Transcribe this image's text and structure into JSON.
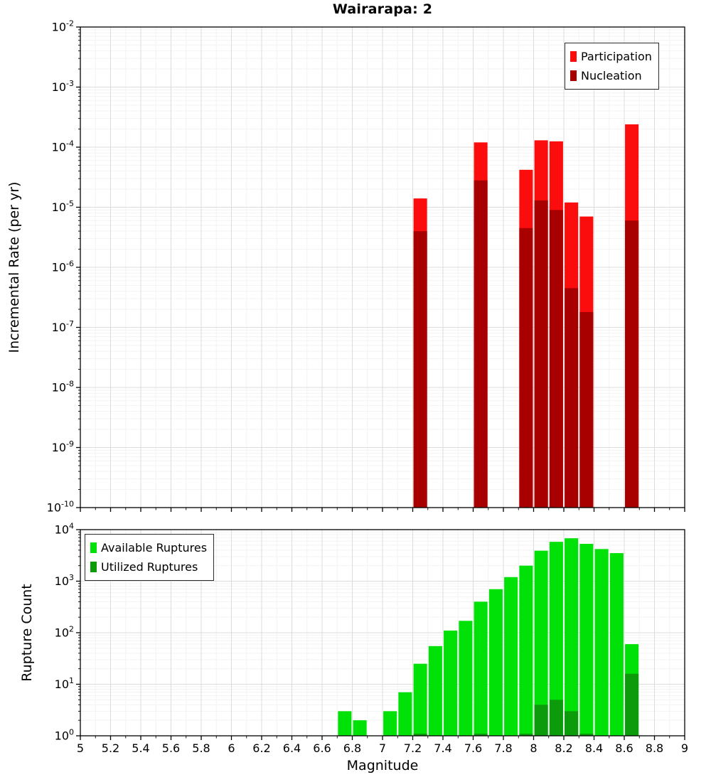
{
  "chart_data": [
    {
      "type": "bar",
      "panel": "top",
      "title": "Wairarapa: 2",
      "ylabel": "Incremental Rate (per yr)",
      "yscale": "log",
      "ylim_exp": [
        -10,
        -2
      ],
      "xlim": [
        5,
        9
      ],
      "xtick_step": 0.2,
      "bin_width": 0.1,
      "grid": true,
      "legend_position": "top-right",
      "legend": [
        {
          "label": "Participation",
          "key": "participation",
          "color": "#fb0d0d"
        },
        {
          "label": "Nucleation",
          "key": "nucleation",
          "color": "#a80000"
        }
      ],
      "bars": [
        {
          "mag": 7.25,
          "participation": 1.4e-05,
          "nucleation": 4e-06
        },
        {
          "mag": 7.65,
          "participation": 0.00012,
          "nucleation": 2.8e-05
        },
        {
          "mag": 7.95,
          "participation": 4.2e-05,
          "nucleation": 4.5e-06
        },
        {
          "mag": 8.05,
          "participation": 0.00013,
          "nucleation": 1.3e-05
        },
        {
          "mag": 8.15,
          "participation": 0.000125,
          "nucleation": 9e-06
        },
        {
          "mag": 8.25,
          "participation": 1.2e-05,
          "nucleation": 4.5e-07
        },
        {
          "mag": 8.35,
          "participation": 7e-06,
          "nucleation": 1.8e-07
        },
        {
          "mag": 8.65,
          "participation": 0.00024,
          "nucleation": 6e-06
        }
      ]
    },
    {
      "type": "bar",
      "panel": "bottom",
      "xlabel": "Magnitude",
      "ylabel": "Rupture Count",
      "yscale": "log",
      "ylim_exp": [
        0,
        4
      ],
      "xlim": [
        5,
        9
      ],
      "xtick_step": 0.2,
      "bin_width": 0.1,
      "grid": true,
      "legend_position": "top-left",
      "xtick_labels": [
        "5",
        "5.2",
        "5.4",
        "5.6",
        "5.8",
        "6",
        "6.2",
        "6.4",
        "6.6",
        "6.8",
        "7",
        "7.2",
        "7.4",
        "7.6",
        "7.8",
        "8",
        "8.2",
        "8.4",
        "8.6",
        "8.8",
        "9"
      ],
      "legend": [
        {
          "label": "Available Ruptures",
          "key": "available",
          "color": "#00e107"
        },
        {
          "label": "Utilized Ruptures",
          "key": "utilized",
          "color": "#0b9b0b"
        }
      ],
      "bars": [
        {
          "mag": 6.75,
          "available": 3,
          "utilized": 0
        },
        {
          "mag": 6.85,
          "available": 2,
          "utilized": 0
        },
        {
          "mag": 7.05,
          "available": 3,
          "utilized": 0
        },
        {
          "mag": 7.15,
          "available": 7,
          "utilized": 0
        },
        {
          "mag": 7.25,
          "available": 25,
          "utilized": 1
        },
        {
          "mag": 7.35,
          "available": 55,
          "utilized": 0
        },
        {
          "mag": 7.45,
          "available": 110,
          "utilized": 0
        },
        {
          "mag": 7.55,
          "available": 170,
          "utilized": 0
        },
        {
          "mag": 7.65,
          "available": 400,
          "utilized": 1
        },
        {
          "mag": 7.75,
          "available": 700,
          "utilized": 0
        },
        {
          "mag": 7.85,
          "available": 1200,
          "utilized": 0
        },
        {
          "mag": 7.95,
          "available": 2000,
          "utilized": 1
        },
        {
          "mag": 8.05,
          "available": 3900,
          "utilized": 4
        },
        {
          "mag": 8.15,
          "available": 5800,
          "utilized": 5
        },
        {
          "mag": 8.25,
          "available": 6800,
          "utilized": 3
        },
        {
          "mag": 8.35,
          "available": 5300,
          "utilized": 1
        },
        {
          "mag": 8.45,
          "available": 4200,
          "utilized": 0
        },
        {
          "mag": 8.55,
          "available": 3500,
          "utilized": 0
        },
        {
          "mag": 8.65,
          "available": 60,
          "utilized": 16
        }
      ]
    }
  ]
}
